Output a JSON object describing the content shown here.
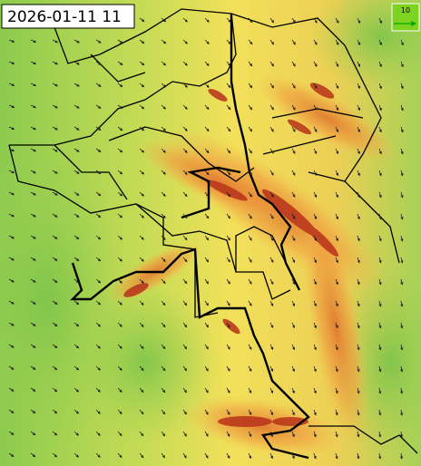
{
  "timestamp": "2026-01-11 11",
  "legend": {
    "label": "10"
  }
}
